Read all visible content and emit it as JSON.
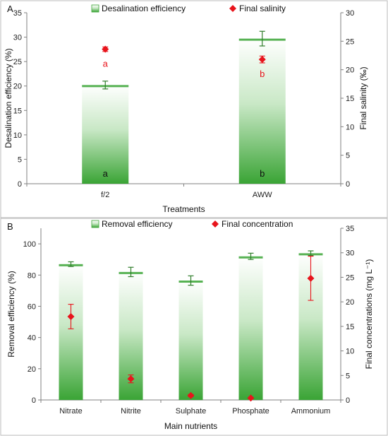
{
  "colors": {
    "bar_dark": "#3aa435",
    "bar_light": "#ffffff",
    "bar_err": "#2f7d2a",
    "diamond": "#e8141c",
    "axis": "#808080"
  },
  "chart_data": [
    {
      "type": "bar",
      "panel_label": "A",
      "categories": [
        "f/2",
        "AWW"
      ],
      "xlabel": "Treatments",
      "ylabel_left": "Desalination efficiency (%)",
      "ylabel_right": "Final salinity (‰)",
      "ylim_left": [
        0,
        35
      ],
      "ylim_right": [
        0,
        30
      ],
      "yticks_left": [
        "0",
        "5",
        "10",
        "15",
        "20",
        "25",
        "30",
        "35"
      ],
      "yticks_right": [
        "0",
        "5",
        "10",
        "15",
        "20",
        "25",
        "30"
      ],
      "legend": {
        "bar": "Desalination efficiency",
        "point": "Final salinity",
        "position": "top"
      },
      "series": [
        {
          "name": "Desalination efficiency",
          "kind": "bar",
          "axis": "left",
          "values": [
            20.2,
            29.7
          ],
          "errors": [
            0.8,
            1.5
          ],
          "letters": [
            "a",
            "b"
          ]
        },
        {
          "name": "Final salinity",
          "kind": "point",
          "axis": "right",
          "values": [
            23.6,
            21.8
          ],
          "errors": [
            0.4,
            0.6
          ],
          "letters": [
            "a",
            "b"
          ]
        }
      ]
    },
    {
      "type": "bar",
      "panel_label": "B",
      "categories": [
        "Nitrate",
        "Nitrite",
        "Sulphate",
        "Phosphate",
        "Ammonium"
      ],
      "xlabel": "Main nutrients",
      "ylabel_left": "Removal efficiency (%)",
      "ylabel_right": "Final concentrations (mg L⁻¹)",
      "ylim_left": [
        0,
        110
      ],
      "ylim_right": [
        0,
        35
      ],
      "yticks_left": [
        "0",
        "20",
        "40",
        "60",
        "80",
        "100"
      ],
      "yticks_right": [
        "0",
        "5",
        "10",
        "15",
        "20",
        "25",
        "30",
        "35"
      ],
      "legend": {
        "bar": "Removal efficiency",
        "point": "Final concentration",
        "position": "top"
      },
      "series": [
        {
          "name": "Removal efficiency",
          "kind": "bar",
          "axis": "left",
          "values": [
            87,
            82,
            76.5,
            92,
            94
          ],
          "errors": [
            1.5,
            3,
            3,
            2,
            1.5
          ]
        },
        {
          "name": "Final concentration",
          "kind": "point",
          "axis": "right",
          "values": [
            17,
            4.3,
            0.9,
            0.4,
            24.8
          ],
          "errors": [
            2.5,
            0.8,
            0.2,
            0.1,
            4.5
          ]
        }
      ]
    }
  ]
}
